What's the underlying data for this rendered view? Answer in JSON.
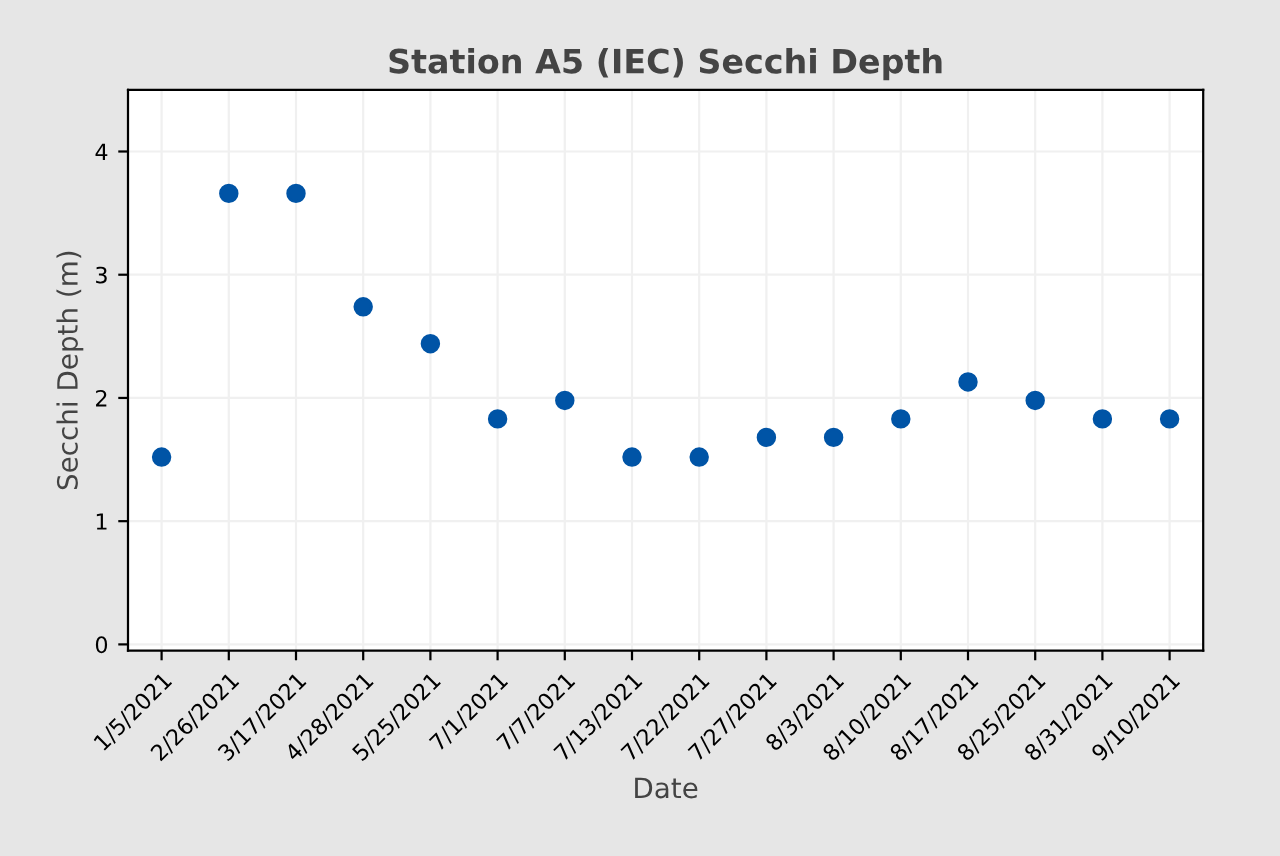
{
  "chart_data": {
    "type": "scatter",
    "title": "Station A5 (IEC) Secchi Depth",
    "xlabel": "Date",
    "ylabel": "Secchi Depth (m)",
    "categories": [
      "1/5/2021",
      "2/26/2021",
      "3/17/2021",
      "4/28/2021",
      "5/25/2021",
      "7/1/2021",
      "7/7/2021",
      "7/13/2021",
      "7/22/2021",
      "7/27/2021",
      "8/3/2021",
      "8/10/2021",
      "8/17/2021",
      "8/25/2021",
      "8/31/2021",
      "9/10/2021"
    ],
    "series": [
      {
        "color": "#0054a6",
        "values": [
          1.52,
          3.66,
          3.66,
          2.74,
          2.44,
          1.83,
          1.98,
          1.52,
          1.52,
          1.68,
          1.68,
          1.83,
          2.13,
          1.98,
          1.83,
          1.83
        ]
      }
    ],
    "ylim": [
      -0.05,
      4.5
    ],
    "yticks": [
      0,
      1,
      2,
      3,
      4
    ],
    "grid": true,
    "marker": "circle"
  }
}
